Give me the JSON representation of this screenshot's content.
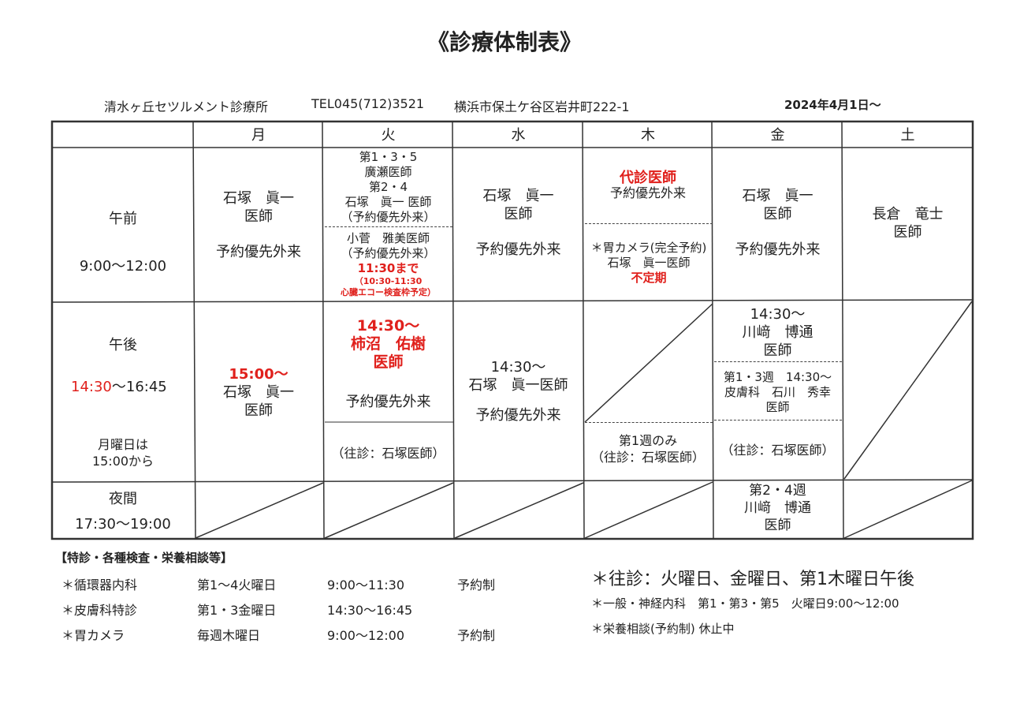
{
  "title": "《診療体制表》",
  "clinic": "清水ヶ丘セツルメント診療所",
  "tel": "TEL045(712)3521",
  "address": "横浜市保土ケ谷区岩井町222-1",
  "effective": "2024年4月1日～",
  "days": [
    "月",
    "火",
    "水",
    "木",
    "金",
    "土"
  ],
  "rows": {
    "am": {
      "label": "午前",
      "time": "9:00～12:00"
    },
    "pm": {
      "label": "午後",
      "time_red": "14:30",
      "time_rest": "～16:45",
      "note1": "月曜日は",
      "note2": "15:00から"
    },
    "night": {
      "label": "夜間",
      "time": "17:30～19:00"
    }
  },
  "am": {
    "mon": [
      "石塚　眞一",
      "医師",
      "予約優先外来"
    ],
    "tue_top": [
      "第1・3・5",
      "廣瀬医師",
      "第2・4",
      "石塚　眞一 医師",
      "（予約優先外来）"
    ],
    "tue_bottom": [
      "小菅　雅美医師",
      "（予約優先外来）",
      "11:30まで",
      "（10:30-11:30",
      "心臓エコー検査枠予定）"
    ],
    "wed": [
      "石塚　眞一",
      "医師",
      "予約優先外来"
    ],
    "thu_top": [
      "代診医師",
      "予約優先外来"
    ],
    "thu_bottom": [
      "＊胃カメラ(完全予約)　　石塚　眞一医師",
      "不定期"
    ],
    "fri": [
      "石塚　眞一",
      "医師",
      "予約優先外来"
    ],
    "sat": [
      "長倉　竜士",
      "医師"
    ]
  },
  "pm": {
    "mon": [
      "15:00～",
      "石塚　眞一",
      "医師"
    ],
    "tue": [
      "14:30～",
      "柿沼　佑樹",
      "医師",
      "予約優先外来",
      "（往診：石塚医師）"
    ],
    "wed": [
      "14:30～",
      "石塚　眞一医師",
      "予約優先外来"
    ],
    "thu": [
      "第1週のみ",
      "（往診：石塚医師）"
    ],
    "fri_top": [
      "14:30～",
      "川﨑　博通",
      "医師"
    ],
    "fri_mid": [
      "第1・3週　14:30～",
      "皮膚科　石川　秀幸",
      "医師"
    ],
    "fri_bottom": "（往診：石塚医師）"
  },
  "night": {
    "fri": [
      "第2・4週",
      "川﨑　博通",
      "医師"
    ]
  },
  "notes": {
    "heading": "【特診・各種検査・栄養相談等】",
    "items": [
      [
        "＊循環器内科",
        "第1～4火曜日",
        "9:00～11:30",
        "予約制"
      ],
      [
        "＊皮膚科特診",
        "第1・3金曜日",
        "14:30～16:45",
        ""
      ],
      [
        "＊胃カメラ",
        "毎週木曜日",
        "9:00～12:00",
        "予約制"
      ]
    ],
    "oshin": "＊往診：火曜日、金曜日、第1木曜日午後",
    "general": "＊一般・神経内科　第1・第3・第5　火曜日9:00～12:00",
    "nutrition": "＊栄養相談(予約制) 休止中"
  },
  "colors": {
    "red": "#e0201c"
  }
}
